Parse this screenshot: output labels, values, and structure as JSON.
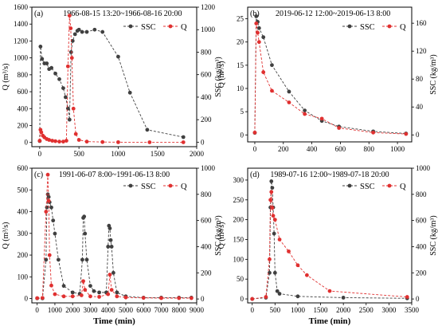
{
  "xlabel": "Time (min)",
  "chart_data": [
    {
      "type": "line",
      "panel": "(a)",
      "period": "1966-08-15 13:20~1966-08-16 20:00",
      "ylabel_left": "Q (m³/s)",
      "ylabel_right": "SSC (kg/m³)",
      "xlim": [
        -100,
        2000
      ],
      "xticks": [
        0,
        500,
        1000,
        1500,
        2000
      ],
      "ylim_left": [
        -50,
        1600
      ],
      "yticks_left": [
        0,
        200,
        400,
        600,
        800,
        1000,
        1200,
        1400,
        1600
      ],
      "ylim_right": [
        -40,
        1200
      ],
      "yticks_right": [
        0,
        200,
        400,
        600,
        800,
        1000,
        1200
      ],
      "legend": [
        "SSC",
        "Q"
      ],
      "colors": {
        "SSC": "#404040",
        "Q": "#e03030"
      },
      "series": [
        {
          "name": "SSC",
          "axis": "right",
          "x": [
            0,
            10,
            30,
            60,
            90,
            120,
            150,
            200,
            250,
            300,
            330,
            360,
            380,
            400,
            420,
            450,
            480,
            500,
            540,
            600,
            700,
            800,
            1000,
            1150,
            1370,
            1830
          ],
          "y": [
            10,
            850,
            740,
            700,
            700,
            650,
            660,
            610,
            560,
            480,
            400,
            300,
            200,
            800,
            900,
            960,
            990,
            1000,
            980,
            980,
            1000,
            980,
            760,
            440,
            110,
            45
          ]
        },
        {
          "name": "Q",
          "axis": "left",
          "x": [
            0,
            10,
            20,
            40,
            60,
            90,
            120,
            160,
            200,
            250,
            300,
            340,
            360,
            380,
            395,
            410,
            430,
            460,
            500,
            600,
            800,
            1000,
            1400,
            1830
          ],
          "y": [
            20,
            150,
            120,
            80,
            60,
            40,
            30,
            20,
            15,
            10,
            10,
            20,
            900,
            1500,
            1350,
            1000,
            400,
            100,
            30,
            10,
            5,
            3,
            2,
            2
          ]
        }
      ]
    },
    {
      "type": "line",
      "panel": "(b)",
      "period": "2019-06-12 12:00~2019-06-13 8:00",
      "ylabel_left": "Q (m³/s)",
      "ylabel_right": "SSC (kg/m³)",
      "xlim": [
        -50,
        1100
      ],
      "xticks": [
        0,
        200,
        400,
        600,
        800,
        1000
      ],
      "ylim_left": [
        -1.5,
        27.5
      ],
      "yticks_left": [
        0,
        5,
        10,
        15,
        20,
        25
      ],
      "ylim_right": [
        -10,
        183
      ],
      "yticks_right": [
        0,
        40,
        80,
        120,
        160
      ],
      "legend": [
        "SSC",
        "Q"
      ],
      "colors": {
        "SSC": "#404040",
        "Q": "#e03030"
      },
      "series": [
        {
          "name": "SSC",
          "axis": "right",
          "x": [
            0,
            10,
            20,
            30,
            60,
            120,
            240,
            350,
            470,
            590,
            830,
            1060
          ],
          "y": [
            3,
            170,
            162,
            153,
            140,
            100,
            62,
            35,
            20,
            12,
            5,
            2
          ]
        },
        {
          "name": "Q",
          "axis": "left",
          "x": [
            0,
            10,
            20,
            30,
            60,
            120,
            240,
            350,
            470,
            590,
            830,
            1060
          ],
          "y": [
            0.5,
            24,
            22,
            20,
            13.5,
            9.5,
            7,
            4.5,
            3.5,
            1.5,
            0.5,
            0.2
          ]
        }
      ]
    },
    {
      "type": "line",
      "panel": "(c)",
      "period": "1991-06-07 8:00~1991-06-13 8:00",
      "ylabel_left": "Q (m³/s)",
      "ylabel_right": "SSC (kg/m³)",
      "xlim": [
        -300,
        9000
      ],
      "xticks": [
        0,
        1000,
        2000,
        3000,
        4000,
        5000,
        6000,
        7000,
        8000,
        9000
      ],
      "ylim_left": [
        -20,
        600
      ],
      "yticks_left": [
        0,
        100,
        200,
        300,
        400,
        500,
        600
      ],
      "ylim_right": [
        -30,
        1000
      ],
      "yticks_right": [
        0,
        200,
        400,
        600,
        800,
        1000
      ],
      "legend": [
        "SSC",
        "Q"
      ],
      "colors": {
        "SSC": "#404040",
        "Q": "#e03030"
      },
      "series": [
        {
          "name": "SSC",
          "axis": "right",
          "x": [
            0,
            300,
            500,
            550,
            600,
            650,
            700,
            800,
            900,
            1000,
            1200,
            1500,
            2000,
            2400,
            2550,
            2600,
            2650,
            2700,
            2800,
            3000,
            3200,
            3500,
            3900,
            4000,
            4050,
            4100,
            4150,
            4200,
            4300,
            4500,
            5000,
            6000,
            7000,
            8000,
            8700
          ],
          "y": [
            5,
            5,
            300,
            700,
            800,
            780,
            740,
            700,
            600,
            500,
            300,
            100,
            50,
            40,
            300,
            620,
            630,
            500,
            300,
            100,
            60,
            50,
            50,
            400,
            560,
            540,
            450,
            400,
            200,
            50,
            20,
            10,
            10,
            10,
            10
          ]
        },
        {
          "name": "Q",
          "axis": "left",
          "x": [
            0,
            300,
            500,
            600,
            650,
            700,
            800,
            1000,
            1500,
            2000,
            2500,
            2600,
            2700,
            3000,
            3500,
            4000,
            4100,
            4200,
            4500,
            5000,
            6000,
            7000,
            8000,
            8700
          ],
          "y": [
            2,
            3,
            400,
            570,
            450,
            200,
            60,
            20,
            10,
            10,
            15,
            80,
            40,
            10,
            8,
            20,
            110,
            40,
            10,
            5,
            3,
            2,
            2,
            2
          ]
        }
      ]
    },
    {
      "type": "line",
      "panel": "(d)",
      "period": "1989-07-16 12:00~1989-07-18 20:00",
      "ylabel_left": "Q (m³/s)",
      "ylabel_right": "SSC (kg/m³)",
      "xlim": [
        -100,
        3500
      ],
      "xticks": [
        0,
        500,
        1000,
        1500,
        2000,
        2500,
        3000,
        3500
      ],
      "ylim_left": [
        -10,
        330
      ],
      "yticks_left": [
        0,
        50,
        100,
        150,
        200,
        250,
        300
      ],
      "ylim_right": [
        -30,
        1000
      ],
      "yticks_right": [
        0,
        200,
        400,
        600,
        800,
        1000
      ],
      "legend": [
        "SSC",
        "Q"
      ],
      "colors": {
        "SSC": "#404040",
        "Q": "#e03030"
      },
      "series": [
        {
          "name": "SSC",
          "axis": "right",
          "x": [
            0,
            300,
            380,
            400,
            420,
            440,
            460,
            480,
            500,
            550,
            600,
            1000,
            2000,
            3400
          ],
          "y": [
            0,
            10,
            200,
            700,
            900,
            850,
            700,
            500,
            200,
            60,
            40,
            20,
            10,
            5
          ]
        },
        {
          "name": "Q",
          "axis": "left",
          "x": [
            0,
            300,
            380,
            400,
            420,
            440,
            460,
            500,
            600,
            800,
            1000,
            1200,
            1700,
            3400
          ],
          "y": [
            0,
            5,
            100,
            250,
            270,
            230,
            210,
            200,
            150,
            120,
            85,
            60,
            20,
            5
          ]
        }
      ]
    }
  ]
}
